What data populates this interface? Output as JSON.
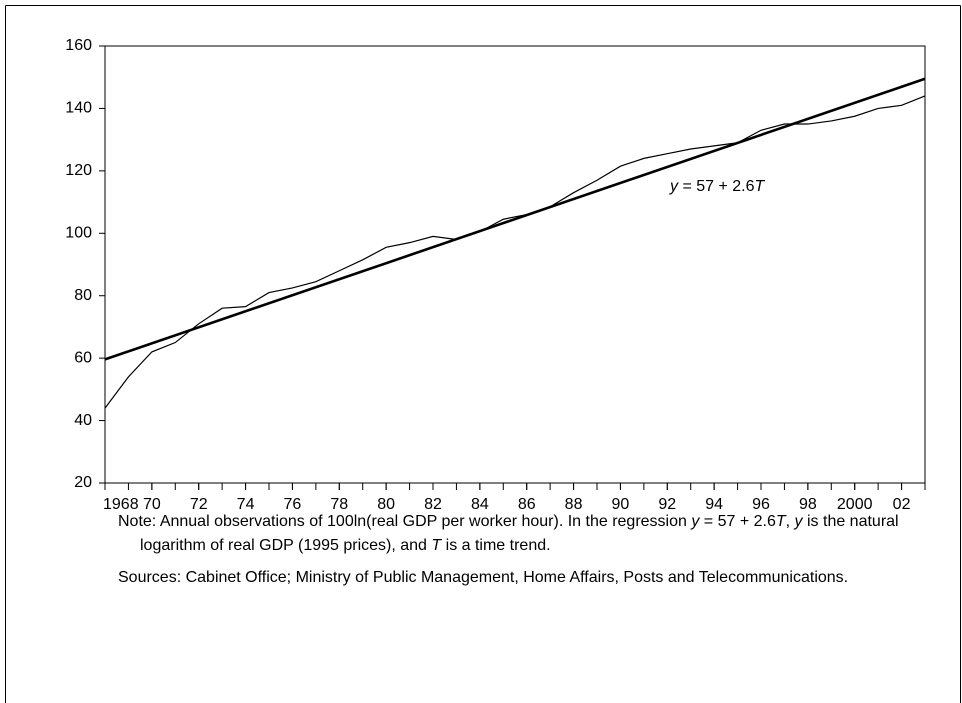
{
  "chart_data": {
    "type": "line",
    "x": [
      1968,
      1969,
      1970,
      1971,
      1972,
      1973,
      1974,
      1975,
      1976,
      1977,
      1978,
      1979,
      1980,
      1981,
      1982,
      1983,
      1984,
      1985,
      1986,
      1987,
      1988,
      1989,
      1990,
      1991,
      1992,
      1993,
      1994,
      1995,
      1996,
      1997,
      1998,
      1999,
      2000,
      2001,
      2002,
      2003
    ],
    "series": [
      {
        "color": "#000000",
        "values": [
          44,
          54,
          62,
          65,
          71,
          76,
          76.5,
          81,
          82.5,
          84.5,
          88,
          91.5,
          95.5,
          97,
          99,
          98,
          100.5,
          104.5,
          106,
          108.5,
          113,
          117,
          121.5,
          124,
          125.5,
          127,
          128,
          129,
          133,
          135,
          135,
          136,
          137.5,
          140,
          141,
          144
        ]
      },
      {
        "color": "#000000",
        "x": [
          1968,
          2003
        ],
        "values": [
          59.6,
          149.5
        ]
      }
    ],
    "annotation": [
      "y",
      " = 57 + 2.6",
      "T"
    ],
    "xlim": [
      1968,
      2003
    ],
    "xticks": [
      {
        "value": 1968,
        "label": "1968"
      },
      {
        "value": 1970,
        "label": "70"
      },
      {
        "value": 1972,
        "label": "72"
      },
      {
        "value": 1974,
        "label": "74"
      },
      {
        "value": 1976,
        "label": "76"
      },
      {
        "value": 1978,
        "label": "78"
      },
      {
        "value": 1980,
        "label": "80"
      },
      {
        "value": 1982,
        "label": "82"
      },
      {
        "value": 1984,
        "label": "84"
      },
      {
        "value": 1986,
        "label": "86"
      },
      {
        "value": 1988,
        "label": "88"
      },
      {
        "value": 1990,
        "label": "90"
      },
      {
        "value": 1992,
        "label": "92"
      },
      {
        "value": 1994,
        "label": "94"
      },
      {
        "value": 1996,
        "label": "96"
      },
      {
        "value": 1998,
        "label": "98"
      },
      {
        "value": 2000,
        "label": "2000"
      },
      {
        "value": 2002,
        "label": "02"
      }
    ],
    "ylim": [
      20,
      160
    ],
    "yticks": [
      20,
      40,
      60,
      80,
      100,
      120,
      140,
      160
    ],
    "grid": false
  },
  "notes": {
    "note_label": "Note:",
    "note": [
      " Annual observations of 100ln(real GDP per worker hour). In the regression ",
      "y",
      " = 57 + 2.6",
      "T",
      ", ",
      "y",
      " is the natural logarithm of real GDP (1995 prices), and ",
      "T",
      " is a time trend."
    ],
    "sources_label": "Sources:",
    "sources": " Cabinet Office; Ministry of Public Management, Home Affairs, Posts and Telecommunications."
  }
}
